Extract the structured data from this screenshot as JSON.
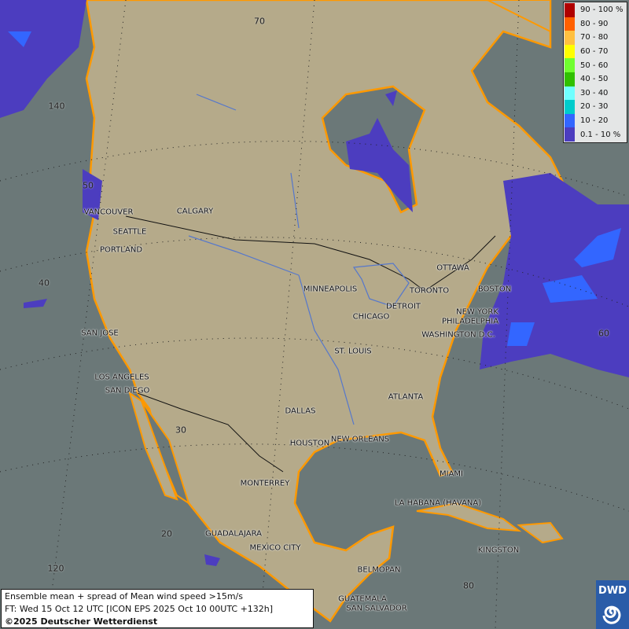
{
  "legend": {
    "items": [
      {
        "label": "90 - 100 %",
        "color": "#b00000"
      },
      {
        "label": "80 - 90",
        "color": "#ff6000"
      },
      {
        "label": "70 - 80",
        "color": "#ffc040"
      },
      {
        "label": "60 - 70",
        "color": "#ffff00"
      },
      {
        "label": "50 - 60",
        "color": "#70ff30"
      },
      {
        "label": "40 - 50",
        "color": "#30c000"
      },
      {
        "label": "30 - 40",
        "color": "#70ffff"
      },
      {
        "label": "20 - 30",
        "color": "#00cccc"
      },
      {
        "label": "10 - 20",
        "color": "#3366ff"
      },
      {
        "label": "0.1 - 10 %",
        "color": "#4c3dbf"
      }
    ]
  },
  "info": {
    "line1": "Ensemble mean + spread of Mean wind speed >15m/s",
    "line2": "FT: Wed 15 Oct 12 UTC [ICON EPS 2025 Oct 10 00UTC +132h]",
    "line3": "©2025 Deutscher Wetterdienst"
  },
  "logo": {
    "text": "DWD",
    "icon": "dwd-spiral-icon"
  },
  "colors": {
    "ocean": "#6b7878",
    "land": "#b5aa8a",
    "coast": "#ff9900",
    "wind_low": "#4c3dbf",
    "wind_mid": "#3366ff"
  },
  "grid_labels": [
    "70",
    "140",
    "50",
    "40",
    "30",
    "20",
    "120",
    "80",
    "60"
  ],
  "cities": [
    "VANCOUVER",
    "CALGARY",
    "SEATTLE",
    "PORTLAND",
    "MINNEAPOLIS",
    "OTTAWA",
    "TORONTO",
    "BOSTON",
    "DETROIT",
    "NEW YORK",
    "CHICAGO",
    "PHILADELPHIA",
    "SAN JOSE",
    "WASHINGTON D.C.",
    "ST. LOUIS",
    "LOS ANGELES",
    "SAN DIEGO",
    "ATLANTA",
    "DALLAS",
    "HOUSTON",
    "NEW ORLEANS",
    "MIAMI",
    "MONTERREY",
    "LA HABANA (HAVANA)",
    "GUADALAJARA",
    "MEXICO CITY",
    "KINGSTON",
    "BELMOPAN",
    "GUATEMALA",
    "SAN SALVADOR"
  ]
}
